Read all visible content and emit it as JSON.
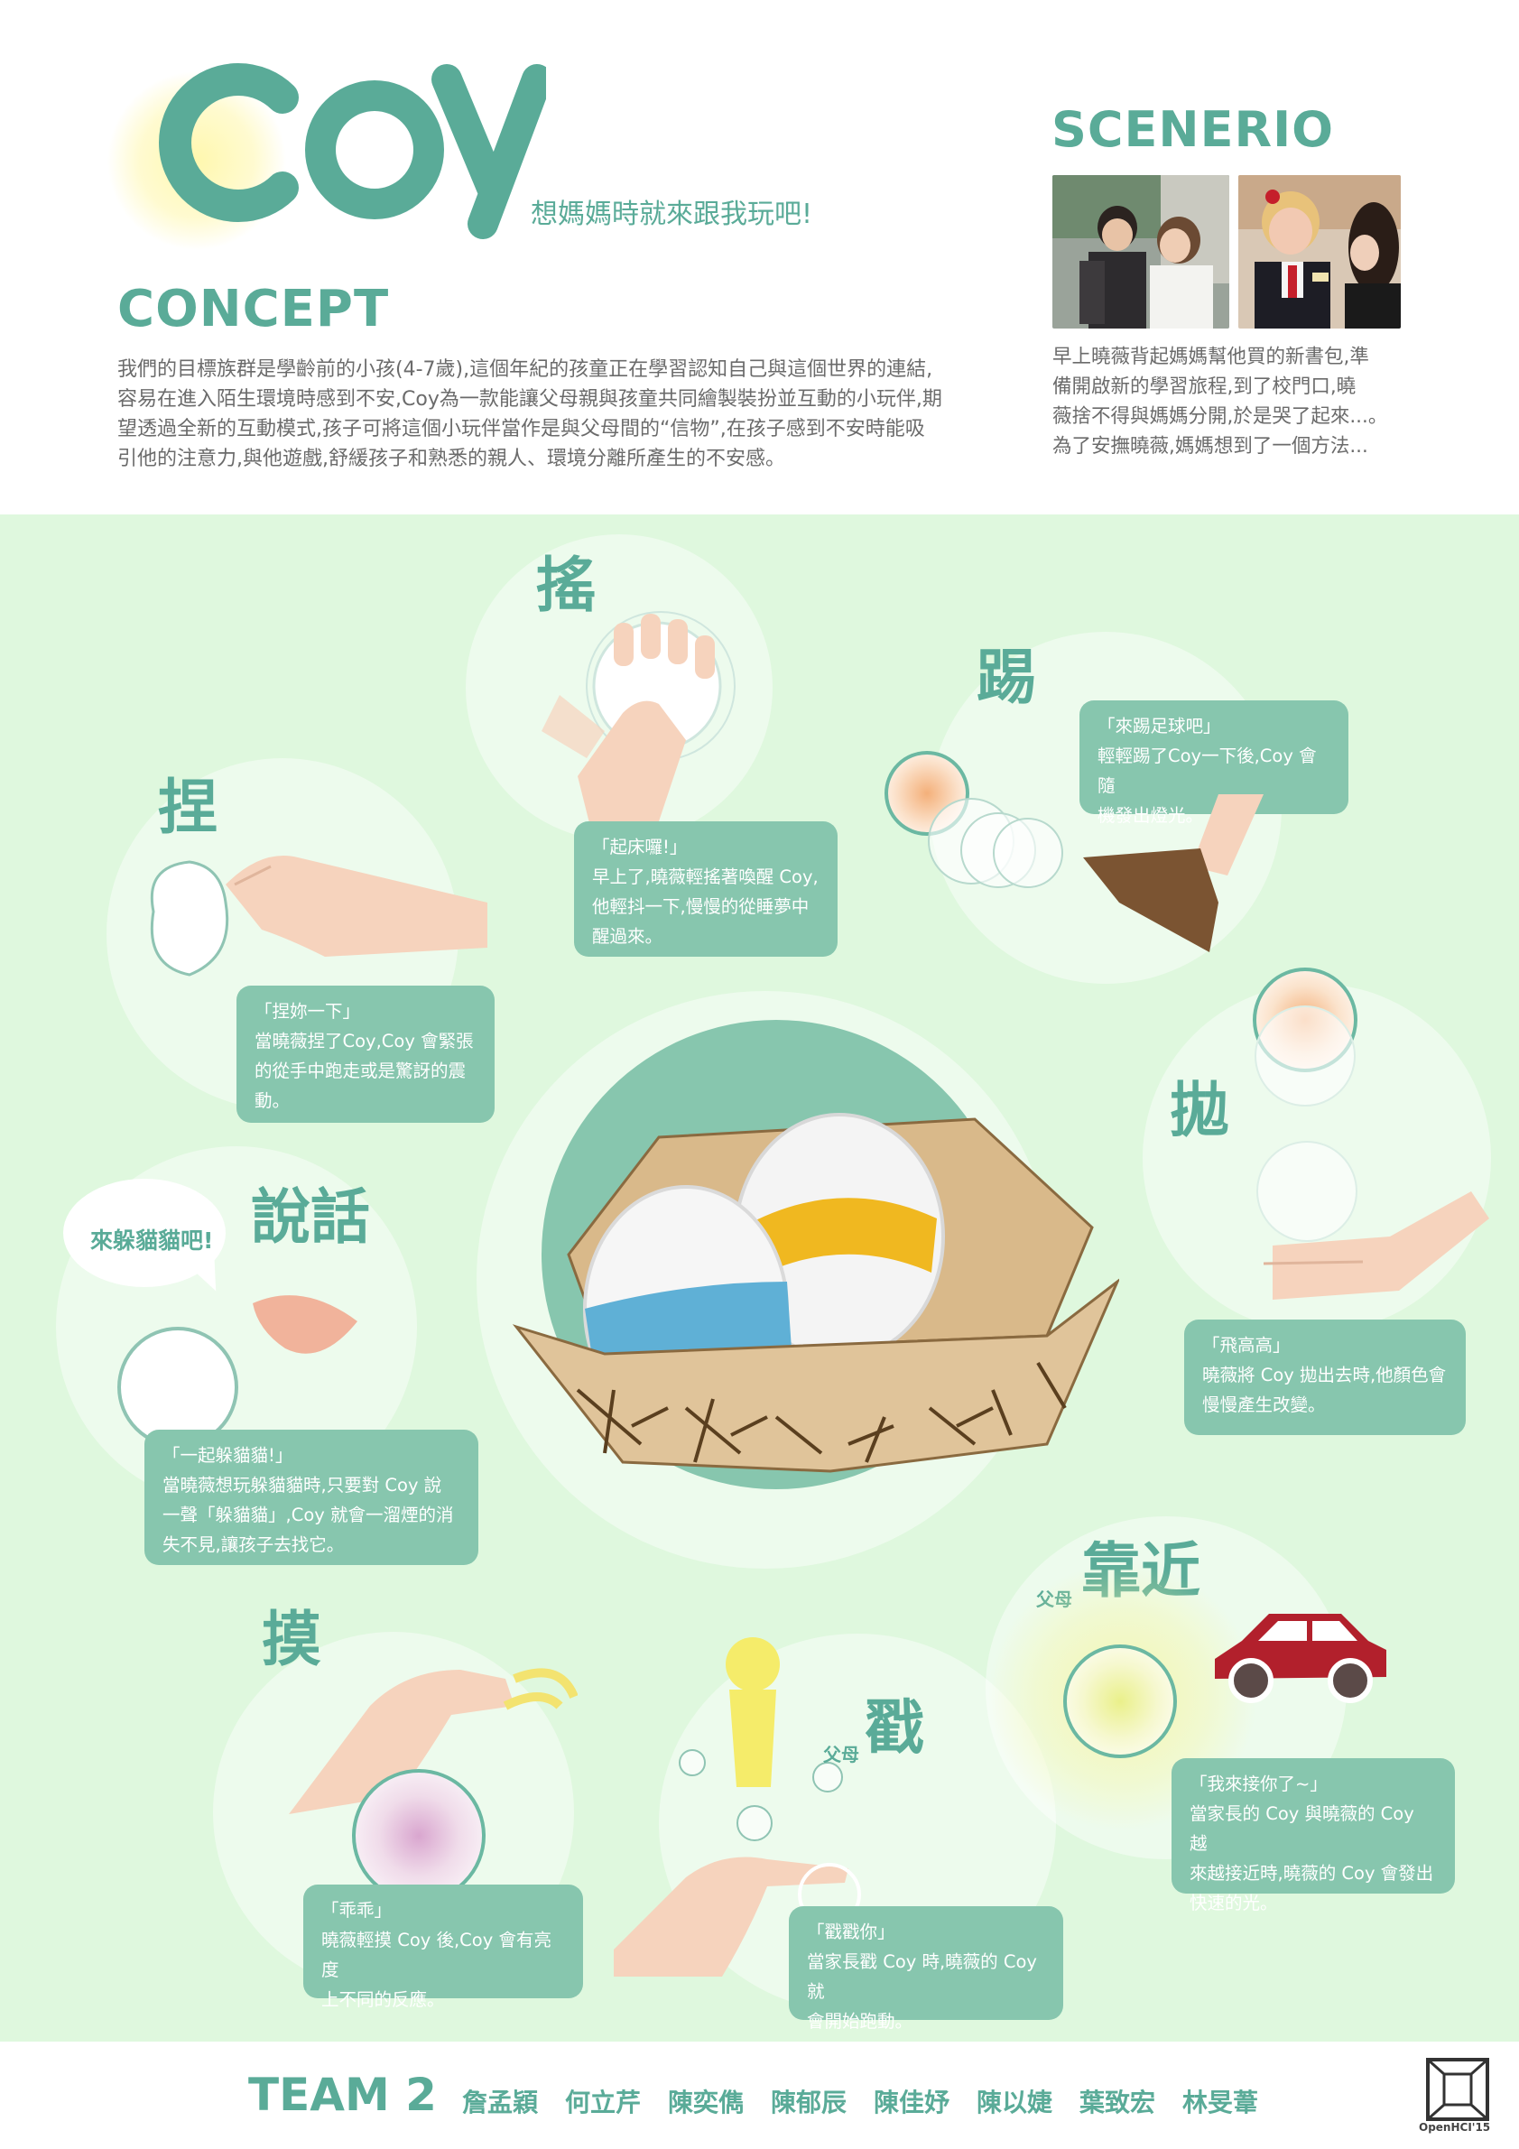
{
  "header": {
    "logo": "COY",
    "tagline": "想媽媽時就來跟我玩吧!",
    "concept_title": "CONCEPT",
    "concept_lines": [
      "我們的目標族群是學齡前的小孩(4-7歲),這個年紀的孩童正在學習認知自己與這個世界的連結,",
      "容易在進入陌生環境時感到不安,Coy為一款能讓父母親與孩童共同繪製裝扮並互動的小玩伴,期",
      "望透過全新的互動模式,孩子可將這個小玩伴當作是與父母間的“信物”,在孩子感到不安時能吸",
      "引他的注意力,與他遊戲,舒緩孩子和熟悉的親人、環境分離所產生的不安感。"
    ],
    "scenario_title": "SCENERIO",
    "scenario_lines": [
      "早上曉薇背起媽媽幫他買的新書包,準",
      "備開啟新的學習旅程,到了校門口,曉",
      "薇捨不得與媽媽分開,於是哭了起來...。",
      "為了安撫曉薇,媽媽想到了一個方法..."
    ]
  },
  "actions": {
    "shake": {
      "title": "搖",
      "quote": "「起床囉!」",
      "lines": [
        "早上了,曉薇輕搖著喚醒 Coy,",
        "他輕抖一下,慢慢的從睡夢中",
        "醒過來。"
      ]
    },
    "kick": {
      "title": "踢",
      "quote": "「來踢足球吧」",
      "lines": [
        "輕輕踢了Coy一下後,Coy 會隨",
        "機發出燈光。"
      ]
    },
    "pinch": {
      "title": "捏",
      "quote": "「捏妳一下」",
      "lines": [
        "當曉薇捏了Coy,Coy 會緊張",
        "的從手中跑走或是驚訝的震",
        "動。"
      ]
    },
    "throw": {
      "title": "拋",
      "quote": "「飛高高」",
      "lines": [
        "曉薇將 Coy 拋出去時,他顏色會",
        "慢慢產生改變。"
      ]
    },
    "speak": {
      "title": "說話",
      "bubble": "來躲貓貓吧!",
      "quote": "「一起躲貓貓!」",
      "lines": [
        "當曉薇想玩躲貓貓時,只要對 Coy 說",
        "一聲「躲貓貓」,Coy 就會一溜煙的消",
        "失不見,讓孩子去找它。"
      ]
    },
    "approach": {
      "prefix": "父母",
      "title": "靠近",
      "quote": "「我來接你了~」",
      "lines": [
        "當家長的 Coy 與曉薇的 Coy 越",
        "來越接近時,曉薇的 Coy 會發出",
        "快速的光。"
      ]
    },
    "touch": {
      "title": "摸",
      "quote": "「乖乖」",
      "lines": [
        "曉薇輕摸 Coy 後,Coy 會有亮度",
        "上不同的反應。"
      ]
    },
    "poke": {
      "prefix": "父母",
      "title": "戳",
      "quote": "「戳戳你」",
      "lines": [
        "當家長戳 Coy 時,曉薇的 Coy 就",
        "會開始跑動。"
      ]
    }
  },
  "footer": {
    "team": "TEAM 2",
    "members": [
      "詹孟穎",
      "何立芹",
      "陳奕儁",
      "陳郁辰",
      "陳佳妤",
      "陳以婕",
      "葉致宏",
      "林旻葦"
    ],
    "logo_text": "OpenHCI'15"
  },
  "colors": {
    "accent": "#5aab98",
    "card": "#87c6ae",
    "background_green": "#dff8de",
    "car": "#b2202c",
    "ribbon_blue": "#5fb0d6",
    "ribbon_yellow": "#f0b820"
  }
}
